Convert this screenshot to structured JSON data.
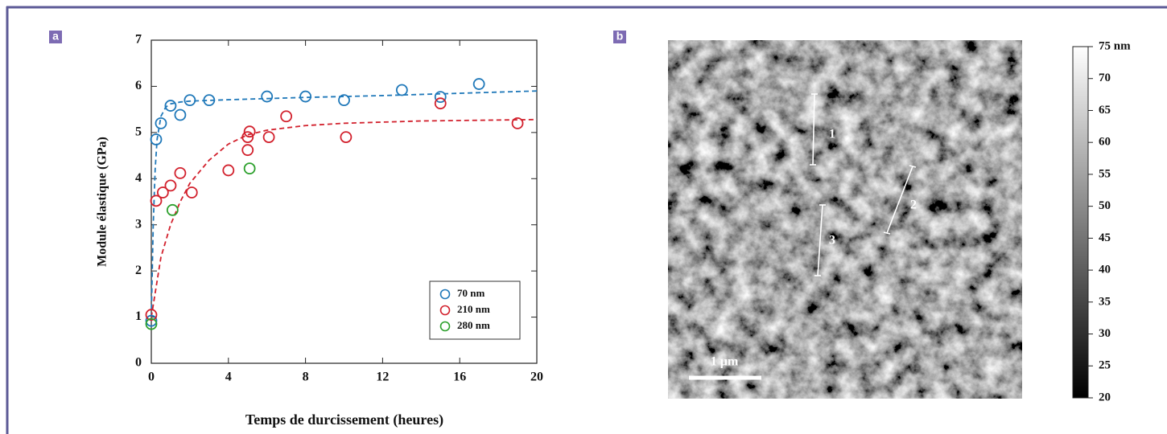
{
  "panels": [
    "a",
    "b"
  ],
  "chart_data": {
    "type": "scatter",
    "xlabel": "Temps de durcissement (heures)",
    "ylabel": "Module élastique (GPa)",
    "xlim": [
      0,
      20
    ],
    "ylim": [
      0,
      7
    ],
    "xticks": [
      0,
      4,
      8,
      12,
      16,
      20
    ],
    "yticks": [
      0,
      1,
      2,
      3,
      4,
      5,
      6,
      7
    ],
    "legend": "lower right",
    "series": [
      {
        "name": "70 nm",
        "color": "#1f78b9",
        "x": [
          0,
          0.25,
          0.5,
          1,
          1.5,
          2,
          3,
          6,
          8,
          10,
          13,
          15,
          17
        ],
        "values": [
          0.92,
          4.85,
          5.2,
          5.58,
          5.38,
          5.7,
          5.7,
          5.78,
          5.78,
          5.7,
          5.92,
          5.77,
          6.05
        ]
      },
      {
        "name": "210 nm",
        "color": "#d2202c",
        "x": [
          0,
          0.25,
          0.6,
          1,
          1.5,
          2.1,
          4,
          5,
          5,
          5.1,
          6.1,
          7,
          10.1,
          15,
          19
        ],
        "values": [
          1.05,
          3.52,
          3.7,
          3.85,
          4.12,
          3.7,
          4.18,
          4.62,
          4.9,
          5.02,
          4.9,
          5.35,
          4.9,
          5.63,
          5.2
        ]
      },
      {
        "name": "280 nm",
        "color": "#2ca02c",
        "x": [
          0,
          1.1,
          5.1
        ],
        "values": [
          0.85,
          3.32,
          4.22
        ]
      }
    ],
    "fits": [
      {
        "color": "#1f78b9",
        "x": [
          0,
          0.1,
          0.2,
          0.3,
          0.5,
          0.75,
          1,
          1.5,
          2,
          4,
          8,
          12,
          16,
          20
        ],
        "values": [
          1.0,
          3.0,
          4.2,
          4.85,
          5.35,
          5.55,
          5.62,
          5.66,
          5.68,
          5.71,
          5.76,
          5.8,
          5.85,
          5.9
        ]
      },
      {
        "color": "#d2202c",
        "x": [
          0,
          0.5,
          1,
          1.5,
          2,
          3,
          4,
          5,
          6,
          8,
          10,
          14,
          20
        ],
        "values": [
          1.0,
          2.3,
          3.0,
          3.5,
          3.9,
          4.4,
          4.75,
          4.95,
          5.05,
          5.15,
          5.2,
          5.25,
          5.28
        ]
      }
    ]
  },
  "image": {
    "annotations": [
      "1",
      "2",
      "3"
    ],
    "scale_bar": "1 µm"
  },
  "colorbar": {
    "lim": [
      20,
      75
    ],
    "ticks": [
      {
        "value": 75,
        "label": "75 nm"
      },
      70,
      65,
      60,
      55,
      50,
      45,
      40,
      35,
      30,
      25,
      20
    ]
  }
}
